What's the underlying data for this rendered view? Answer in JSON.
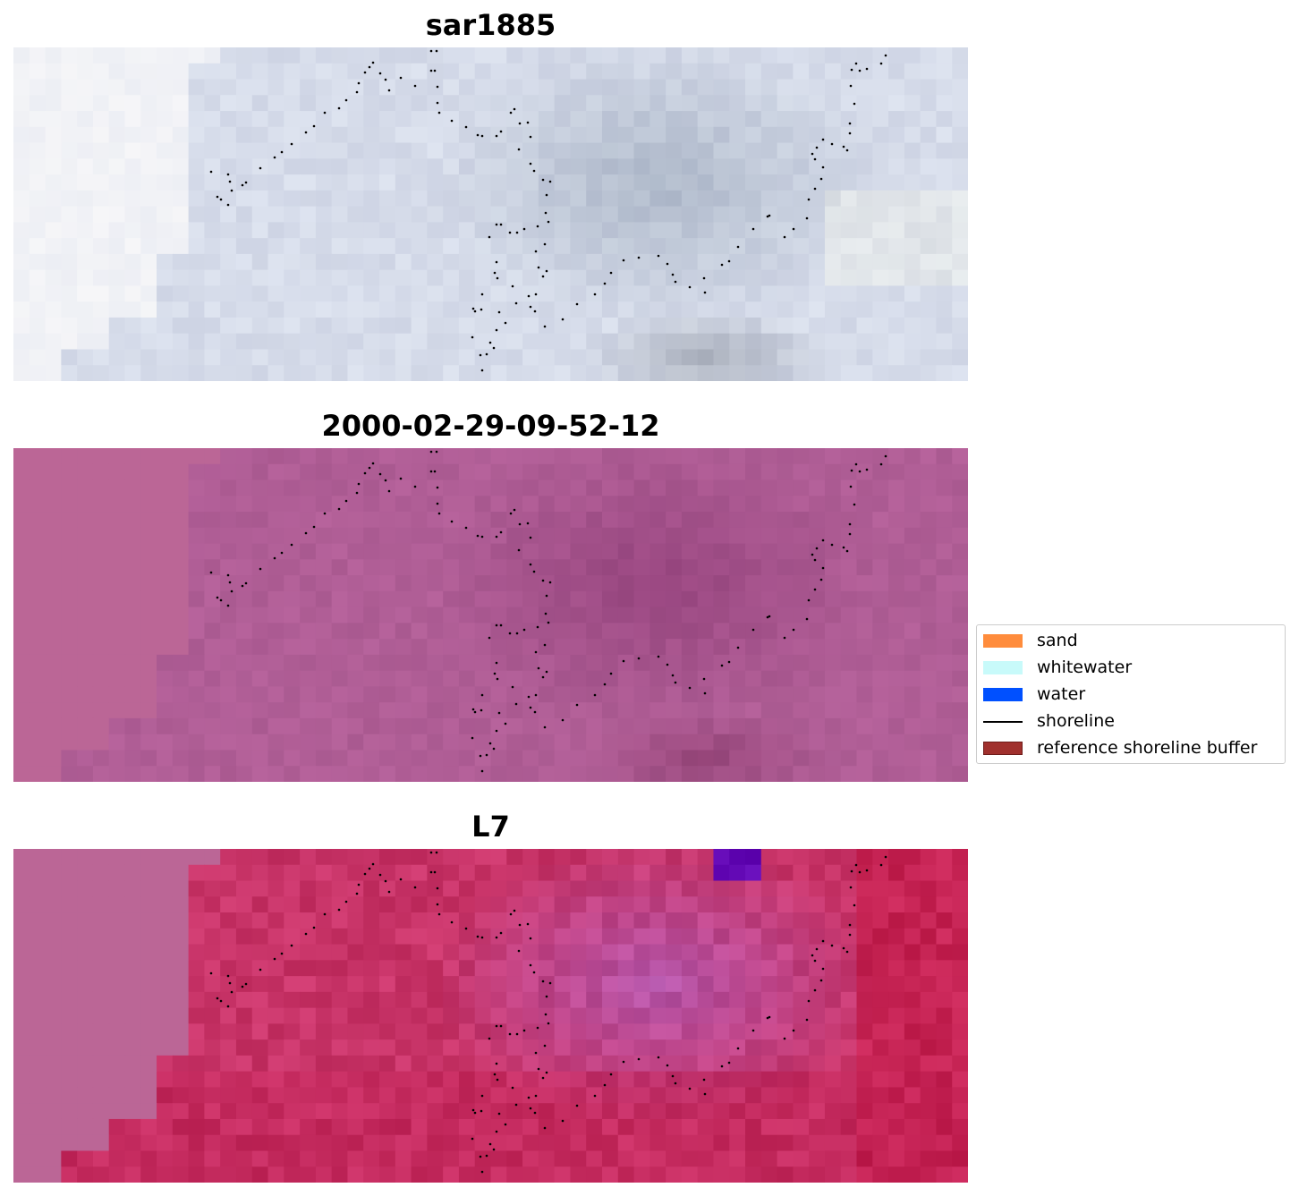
{
  "panels": [
    {
      "title": "sar1885",
      "style": "sar"
    },
    {
      "title": "2000-02-29-09-52-12",
      "style": "purple"
    },
    {
      "title": "L7",
      "style": "red"
    }
  ],
  "legend": {
    "items": [
      {
        "label": "sand",
        "color": "#ff8c3c",
        "kind": "patch"
      },
      {
        "label": "whitewater",
        "color": "#c8fafa",
        "kind": "patch"
      },
      {
        "label": "water",
        "color": "#0050ff",
        "kind": "patch"
      },
      {
        "label": "shoreline",
        "color": "#000000",
        "kind": "line"
      },
      {
        "label": "reference shoreline buffer",
        "color": "#a0302d",
        "kind": "patch"
      }
    ]
  },
  "colors": {
    "sar_base": "#d2d8e4",
    "purple_base": "#a8568e",
    "red_base": "#c83c6e",
    "shoreline_dots": "#000000"
  }
}
